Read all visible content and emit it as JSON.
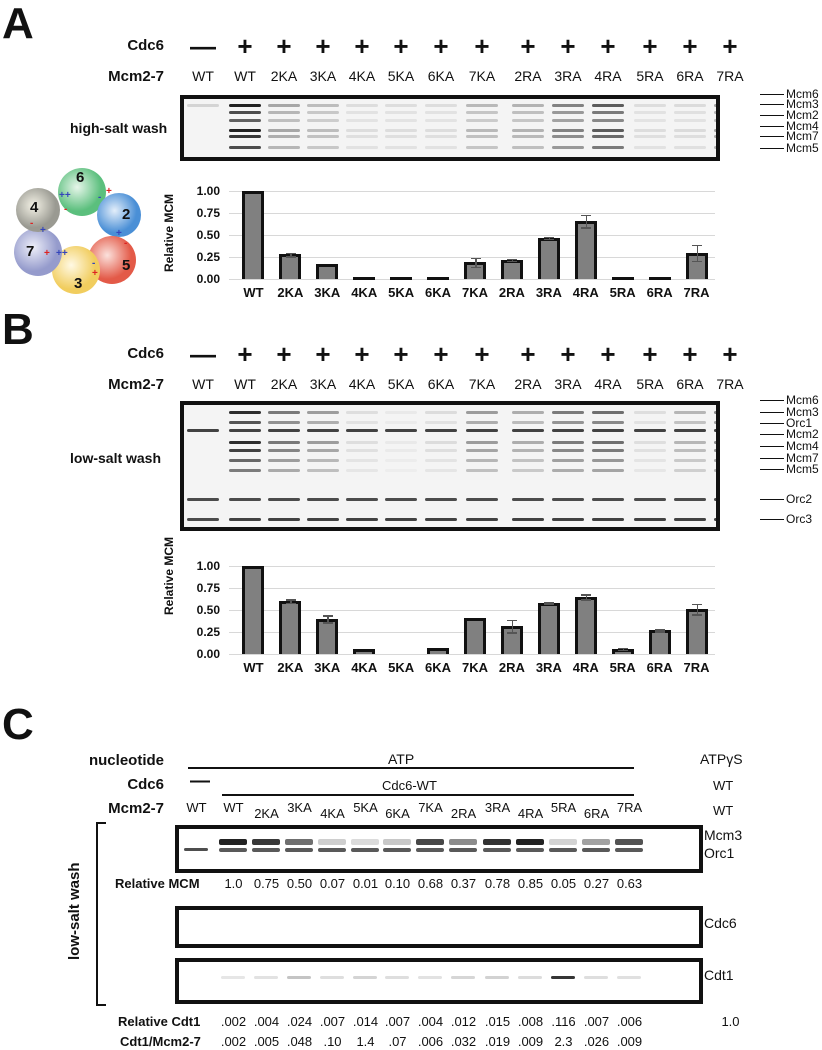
{
  "panels": {
    "A": {
      "letter": "A",
      "cdc6_label": "Cdc6",
      "mcm_label": "Mcm2-7",
      "cdc6_signs": [
        "—",
        "+",
        "+",
        "+",
        "+",
        "+",
        "+",
        "+",
        "+",
        "+",
        "+",
        "+",
        "+",
        "+"
      ],
      "lanes": [
        "WT",
        "WT",
        "2KA",
        "3KA",
        "4KA",
        "5KA",
        "6KA",
        "7KA",
        "2RA",
        "3RA",
        "4RA",
        "5RA",
        "6RA",
        "7RA"
      ],
      "gel_label": "high-salt wash",
      "markers": [
        "Mcm6",
        "Mcm3",
        "Mcm2",
        "Mcm4",
        "Mcm7",
        "Mcm5"
      ],
      "ring": {
        "subunits": [
          "6",
          "2",
          "5",
          "3",
          "7",
          "4"
        ],
        "colors": {
          "6": "#6cc48a",
          "2": "#5b9bd8",
          "5": "#e8685a",
          "3": "#f3d36e",
          "7": "#9ea3cf",
          "4": "#a8a8a0"
        }
      }
    },
    "B": {
      "letter": "B",
      "cdc6_label": "Cdc6",
      "mcm_label": "Mcm2-7",
      "cdc6_signs": [
        "—",
        "+",
        "+",
        "+",
        "+",
        "+",
        "+",
        "+",
        "+",
        "+",
        "+",
        "+",
        "+",
        "+"
      ],
      "lanes": [
        "WT",
        "WT",
        "2KA",
        "3KA",
        "4KA",
        "5KA",
        "6KA",
        "7KA",
        "2RA",
        "3RA",
        "4RA",
        "5RA",
        "6RA",
        "7RA"
      ],
      "gel_label": "low-salt wash",
      "markers": [
        "Mcm6",
        "Mcm3",
        "Orc1",
        "Mcm2",
        "Mcm4",
        "Mcm7",
        "Mcm5",
        "Orc2",
        "Orc3"
      ]
    },
    "C": {
      "letter": "C",
      "nucleotide_label": "nucleotide",
      "cdc6_label": "Cdc6",
      "mcm_label": "Mcm2-7",
      "atp_label": "ATP",
      "atpgs_label": "ATPγS",
      "cdc6_minus": "—",
      "cdc6_wt_label": "Cdc6-WT",
      "atpgs_cdc6": "WT",
      "atpgs_mcm": "WT",
      "lanes": [
        "WT",
        "WT",
        "2KA",
        "3KA",
        "4KA",
        "5KA",
        "6KA",
        "7KA",
        "2RA",
        "3RA",
        "4RA",
        "5RA",
        "6RA",
        "7RA"
      ],
      "side_label": "low-salt wash",
      "gel1_markers": [
        "Mcm3",
        "Orc1"
      ],
      "gel2_marker": "Cdc6",
      "gel3_marker": "Cdt1",
      "relative_mcm_label": "Relative MCM",
      "relative_mcm": [
        "1.0",
        "0.75",
        "0.50",
        "0.07",
        "0.01",
        "0.10",
        "0.68",
        "0.37",
        "0.78",
        "0.85",
        "0.05",
        "0.27",
        "0.63"
      ],
      "relative_cdt1_label": "Relative Cdt1",
      "relative_cdt1": [
        ".002",
        ".004",
        ".024",
        ".007",
        ".014",
        ".007",
        ".004",
        ".012",
        ".015",
        ".008",
        ".116",
        ".007",
        ".006"
      ],
      "relative_cdt1_atpgs": "1.0",
      "ratio_label": "Cdt1/Mcm2-7",
      "ratio": [
        ".002",
        ".005",
        ".048",
        ".10",
        "1.4",
        ".07",
        ".006",
        ".032",
        ".019",
        ".009",
        "2.3",
        ".026",
        ".009"
      ]
    }
  },
  "chart_data": [
    {
      "type": "bar",
      "title": "",
      "panel": "A",
      "xlabel": "",
      "ylabel": "Relative MCM",
      "ylim": [
        0,
        1.0
      ],
      "yticks": [
        "1.00",
        "0.75",
        "0.50",
        "0.25",
        "0.00"
      ],
      "grid": true,
      "categories": [
        "WT",
        "2KA",
        "3KA",
        "4KA",
        "5KA",
        "6KA",
        "7KA",
        "2RA",
        "3RA",
        "4RA",
        "5RA",
        "6RA",
        "7RA"
      ],
      "values": [
        1.0,
        0.28,
        0.17,
        0.01,
        0.01,
        0.01,
        0.19,
        0.22,
        0.47,
        0.66,
        0.01,
        0.02,
        0.3
      ],
      "errors": [
        0.0,
        0.02,
        0.0,
        0.0,
        0.0,
        0.0,
        0.05,
        0.01,
        0.01,
        0.07,
        0.0,
        0.0,
        0.09
      ]
    },
    {
      "type": "bar",
      "title": "",
      "panel": "B",
      "xlabel": "",
      "ylabel": "Relative MCM",
      "ylim": [
        0,
        1.0
      ],
      "yticks": [
        "1.00",
        "0.75",
        "0.50",
        "0.25",
        "0.00"
      ],
      "grid": true,
      "categories": [
        "WT",
        "2KA",
        "3KA",
        "4KA",
        "5KA",
        "6KA",
        "7KA",
        "2RA",
        "3RA",
        "4RA",
        "5RA",
        "6RA",
        "7RA"
      ],
      "values": [
        1.0,
        0.6,
        0.4,
        0.06,
        0.0,
        0.07,
        0.41,
        0.32,
        0.58,
        0.65,
        0.06,
        0.27,
        0.51
      ],
      "errors": [
        0.0,
        0.02,
        0.04,
        0.0,
        0.0,
        0.0,
        0.0,
        0.07,
        0.01,
        0.03,
        0.01,
        0.01,
        0.06
      ]
    }
  ]
}
